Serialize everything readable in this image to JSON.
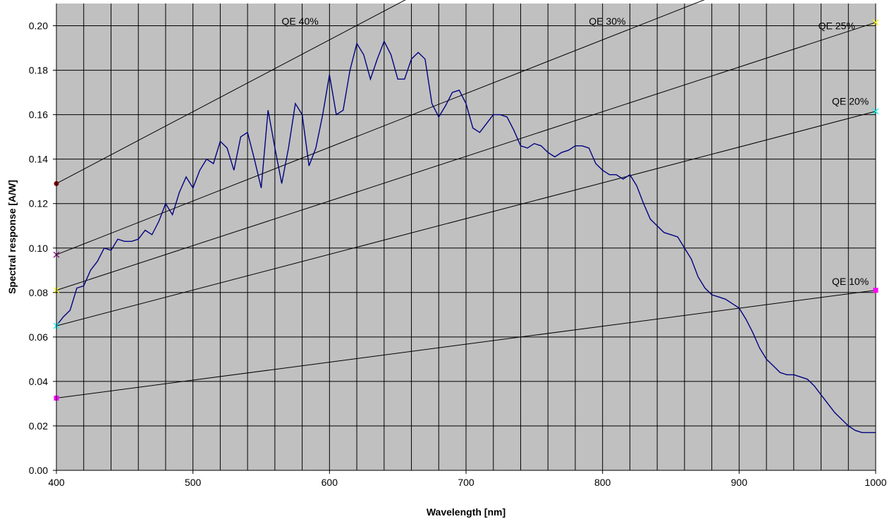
{
  "chart_data": {
    "type": "line",
    "title": "",
    "xlabel": "Wavelength [nm]",
    "ylabel": "Spectral response [A/W]",
    "xlim": [
      400,
      1000
    ],
    "ylim": [
      0,
      0.21
    ],
    "x_ticks": [
      "400",
      "500",
      "600",
      "700",
      "800",
      "900",
      "1000"
    ],
    "y_ticks": [
      "0.00",
      "0.02",
      "0.04",
      "0.06",
      "0.08",
      "0.10",
      "0.12",
      "0.14",
      "0.16",
      "0.18",
      "0.20"
    ],
    "grid": true,
    "background_color": "#c0c0c0",
    "grid_color": "#000000",
    "response_color": "#000080",
    "qe_line_color": "#000000",
    "series": [
      {
        "points": [
          [
            400,
            0.065
          ],
          [
            405,
            0.069
          ],
          [
            410,
            0.072
          ],
          [
            415,
            0.082
          ],
          [
            420,
            0.083
          ],
          [
            425,
            0.09
          ],
          [
            430,
            0.094
          ],
          [
            435,
            0.1
          ],
          [
            440,
            0.099
          ],
          [
            445,
            0.104
          ],
          [
            450,
            0.103
          ],
          [
            455,
            0.103
          ],
          [
            460,
            0.104
          ],
          [
            465,
            0.108
          ],
          [
            470,
            0.106
          ],
          [
            475,
            0.112
          ],
          [
            480,
            0.12
          ],
          [
            485,
            0.115
          ],
          [
            490,
            0.125
          ],
          [
            495,
            0.132
          ],
          [
            500,
            0.127
          ],
          [
            505,
            0.135
          ],
          [
            510,
            0.14
          ],
          [
            515,
            0.138
          ],
          [
            520,
            0.148
          ],
          [
            525,
            0.145
          ],
          [
            530,
            0.135
          ],
          [
            535,
            0.15
          ],
          [
            540,
            0.152
          ],
          [
            545,
            0.14
          ],
          [
            550,
            0.127
          ],
          [
            555,
            0.162
          ],
          [
            560,
            0.145
          ],
          [
            565,
            0.129
          ],
          [
            570,
            0.145
          ],
          [
            575,
            0.165
          ],
          [
            580,
            0.16
          ],
          [
            585,
            0.137
          ],
          [
            590,
            0.145
          ],
          [
            595,
            0.16
          ],
          [
            600,
            0.178
          ],
          [
            605,
            0.16
          ],
          [
            610,
            0.162
          ],
          [
            615,
            0.18
          ],
          [
            620,
            0.192
          ],
          [
            625,
            0.187
          ],
          [
            630,
            0.176
          ],
          [
            635,
            0.185
          ],
          [
            640,
            0.193
          ],
          [
            645,
            0.187
          ],
          [
            650,
            0.176
          ],
          [
            655,
            0.176
          ],
          [
            660,
            0.185
          ],
          [
            665,
            0.188
          ],
          [
            670,
            0.185
          ],
          [
            675,
            0.165
          ],
          [
            680,
            0.159
          ],
          [
            685,
            0.164
          ],
          [
            690,
            0.17
          ],
          [
            695,
            0.171
          ],
          [
            700,
            0.165
          ],
          [
            705,
            0.154
          ],
          [
            710,
            0.152
          ],
          [
            715,
            0.156
          ],
          [
            720,
            0.16
          ],
          [
            725,
            0.16
          ],
          [
            730,
            0.159
          ],
          [
            735,
            0.153
          ],
          [
            740,
            0.146
          ],
          [
            745,
            0.145
          ],
          [
            750,
            0.147
          ],
          [
            755,
            0.146
          ],
          [
            760,
            0.143
          ],
          [
            765,
            0.141
          ],
          [
            770,
            0.143
          ],
          [
            775,
            0.144
          ],
          [
            780,
            0.146
          ],
          [
            785,
            0.146
          ],
          [
            790,
            0.145
          ],
          [
            795,
            0.138
          ],
          [
            800,
            0.135
          ],
          [
            805,
            0.133
          ],
          [
            810,
            0.133
          ],
          [
            815,
            0.131
          ],
          [
            820,
            0.133
          ],
          [
            825,
            0.128
          ],
          [
            830,
            0.12
          ],
          [
            835,
            0.113
          ],
          [
            840,
            0.11
          ],
          [
            845,
            0.107
          ],
          [
            850,
            0.106
          ],
          [
            855,
            0.105
          ],
          [
            860,
            0.1
          ],
          [
            865,
            0.095
          ],
          [
            870,
            0.087
          ],
          [
            875,
            0.082
          ],
          [
            880,
            0.079
          ],
          [
            885,
            0.078
          ],
          [
            890,
            0.077
          ],
          [
            895,
            0.075
          ],
          [
            900,
            0.073
          ],
          [
            905,
            0.068
          ],
          [
            910,
            0.062
          ],
          [
            915,
            0.055
          ],
          [
            920,
            0.05
          ],
          [
            925,
            0.047
          ],
          [
            930,
            0.044
          ],
          [
            935,
            0.043
          ],
          [
            940,
            0.043
          ],
          [
            945,
            0.042
          ],
          [
            950,
            0.041
          ],
          [
            955,
            0.038
          ],
          [
            960,
            0.034
          ],
          [
            965,
            0.03
          ],
          [
            970,
            0.026
          ],
          [
            975,
            0.023
          ],
          [
            980,
            0.02
          ],
          [
            985,
            0.018
          ],
          [
            990,
            0.017
          ],
          [
            995,
            0.017
          ],
          [
            1000,
            0.017
          ]
        ]
      }
    ],
    "qe_lines": [
      {
        "label": "QE 40%",
        "y_at_400": 0.129,
        "y_at_1000": 0.323,
        "marker": "circle",
        "marker_color": "#800000",
        "label_at": [
          565,
          0.2005
        ]
      },
      {
        "label": "QE 30%",
        "y_at_400": 0.097,
        "y_at_1000": 0.242,
        "marker": "x",
        "marker_color": "#800080",
        "label_at": [
          790,
          0.2005
        ]
      },
      {
        "label": "QE 25%",
        "y_at_400": 0.081,
        "y_at_1000": 0.2015,
        "marker": "x",
        "marker_color": "#ffff00",
        "label_at": [
          958,
          0.1985
        ]
      },
      {
        "label": "QE 20%",
        "y_at_400": 0.065,
        "y_at_1000": 0.1615,
        "marker": "x",
        "marker_color": "#00ffff",
        "label_at": [
          968,
          0.1645
        ]
      },
      {
        "label": "QE 10%",
        "y_at_400": 0.0325,
        "y_at_1000": 0.081,
        "marker": "square",
        "marker_color": "#ff00ff",
        "label_at": [
          968,
          0.0835
        ]
      }
    ]
  }
}
